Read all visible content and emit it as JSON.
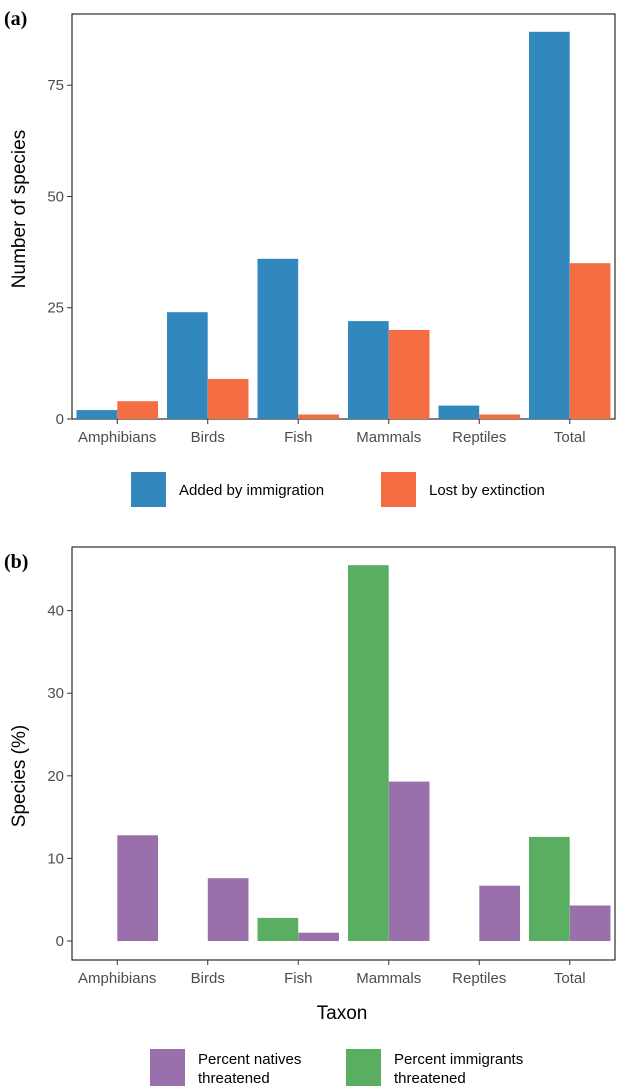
{
  "chart_data": [
    {
      "panel_label": "(a)",
      "type": "bar",
      "categories": [
        "Amphibians",
        "Birds",
        "Fish",
        "Mammals",
        "Reptiles",
        "Total"
      ],
      "series": [
        {
          "name": "Added by immigration",
          "color": "#3288bd",
          "values": [
            2,
            24,
            36,
            22,
            3,
            87
          ]
        },
        {
          "name": "Lost by extinction",
          "color": "#f46d43",
          "values": [
            4,
            9,
            1,
            20,
            1,
            35
          ]
        }
      ],
      "ylabel": "Number of species",
      "xlabel": "",
      "ylim": [
        0,
        91
      ],
      "yticks": [
        0,
        25,
        50,
        75
      ],
      "grid": false,
      "legend_position": "bottom"
    },
    {
      "panel_label": "(b)",
      "type": "bar",
      "categories": [
        "Amphibians",
        "Birds",
        "Fish",
        "Mammals",
        "Reptiles",
        "Total"
      ],
      "series": [
        {
          "name": "Percent immigrants threatened",
          "color": "#5aae61",
          "values": [
            null,
            null,
            2.8,
            45.5,
            null,
            12.6
          ]
        },
        {
          "name": "Percent natives threatened",
          "color": "#9970ab",
          "values": [
            12.8,
            7.6,
            1.0,
            19.3,
            6.7,
            4.3
          ]
        }
      ],
      "legend_order": [
        "Percent natives threatened",
        "Percent immigrants threatened"
      ],
      "legend_labels": [
        [
          "Percent natives",
          "threatened"
        ],
        [
          "Percent immigrants",
          "threatened"
        ]
      ],
      "ylabel": "Species (%)",
      "xlabel": "Taxon",
      "ylim": [
        -2.3,
        47.7
      ],
      "yticks": [
        0,
        10,
        20,
        30,
        40
      ],
      "grid": false,
      "legend_position": "bottom"
    }
  ]
}
